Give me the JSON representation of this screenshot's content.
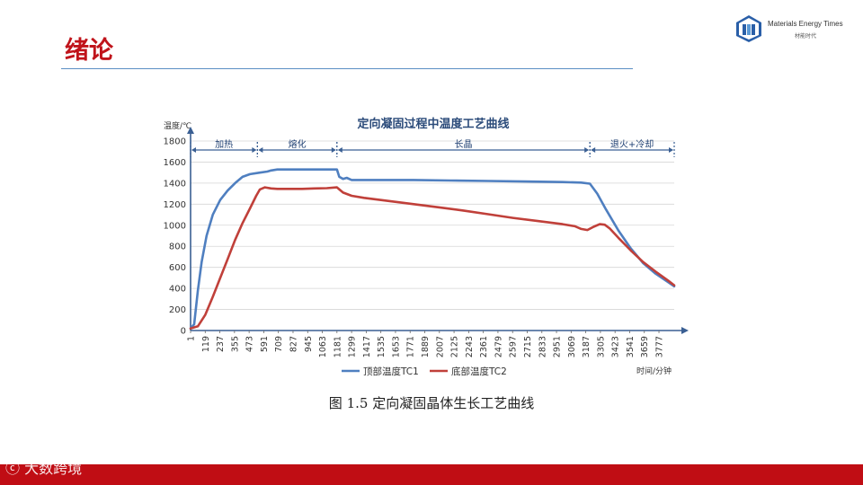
{
  "slide": {
    "title": "绪论",
    "logo_en": "Materials Energy Times",
    "logo_cn": "材能时代",
    "caption": "图 1.5  定向凝固晶体生长工艺曲线",
    "watermark": "大数跨境"
  },
  "colors": {
    "accent": "#c0141b",
    "rule": "#5b8fc4",
    "footer": "#c00d14"
  },
  "chart_data": {
    "type": "line",
    "title": "定向凝固过程中温度工艺曲线",
    "ylabel": "温度/℃",
    "xlabel": "时间/分钟",
    "ylim": [
      0,
      1800
    ],
    "yticks": [
      0,
      200,
      400,
      600,
      800,
      1000,
      1200,
      1400,
      1600,
      1800
    ],
    "xlim": [
      1,
      3900
    ],
    "xticks": [
      1,
      119,
      237,
      355,
      473,
      591,
      709,
      827,
      945,
      1063,
      1181,
      1299,
      1417,
      1535,
      1653,
      1771,
      1889,
      2007,
      2125,
      2243,
      2361,
      2479,
      2597,
      2715,
      2833,
      2951,
      3069,
      3187,
      3305,
      3423,
      3541,
      3659,
      3777
    ],
    "grid": true,
    "legend": "bottom-center",
    "stages": [
      {
        "label": "加热",
        "from": 1,
        "to": 540
      },
      {
        "label": "熔化",
        "from": 540,
        "to": 1181
      },
      {
        "label": "长晶",
        "from": 1181,
        "to": 3220
      },
      {
        "label": "退火+冷却",
        "from": 3220,
        "to": 3900
      }
    ],
    "series": [
      {
        "name": "顶部温度TC1",
        "color": "#4f7fc0",
        "x": [
          1,
          30,
          60,
          90,
          130,
          180,
          240,
          300,
          360,
          420,
          480,
          560,
          620,
          650,
          700,
          800,
          900,
          1000,
          1100,
          1181,
          1200,
          1230,
          1260,
          1300,
          1500,
          1800,
          2100,
          2400,
          2700,
          3000,
          3150,
          3220,
          3280,
          3350,
          3450,
          3550,
          3650,
          3750,
          3850,
          3900
        ],
        "y": [
          20,
          60,
          380,
          650,
          900,
          1100,
          1240,
          1330,
          1400,
          1460,
          1485,
          1500,
          1510,
          1520,
          1530,
          1530,
          1530,
          1530,
          1530,
          1530,
          1460,
          1440,
          1450,
          1430,
          1430,
          1430,
          1425,
          1420,
          1415,
          1410,
          1405,
          1395,
          1300,
          1150,
          950,
          780,
          640,
          540,
          460,
          420
        ]
      },
      {
        "name": "底部温度TC2",
        "color": "#c0403a",
        "x": [
          1,
          60,
          120,
          180,
          240,
          300,
          360,
          420,
          480,
          530,
          560,
          600,
          650,
          700,
          800,
          900,
          1000,
          1100,
          1181,
          1230,
          1300,
          1400,
          1600,
          1800,
          2000,
          2200,
          2400,
          2600,
          2800,
          3000,
          3100,
          3150,
          3200,
          3250,
          3300,
          3340,
          3380,
          3450,
          3550,
          3650,
          3750,
          3850,
          3900
        ],
        "y": [
          20,
          40,
          150,
          320,
          500,
          680,
          860,
          1020,
          1160,
          1280,
          1340,
          1360,
          1350,
          1345,
          1345,
          1345,
          1350,
          1352,
          1360,
          1310,
          1280,
          1260,
          1230,
          1200,
          1170,
          1140,
          1105,
          1070,
          1040,
          1010,
          990,
          965,
          955,
          985,
          1010,
          1005,
          970,
          880,
          760,
          650,
          560,
          475,
          430
        ]
      }
    ]
  }
}
